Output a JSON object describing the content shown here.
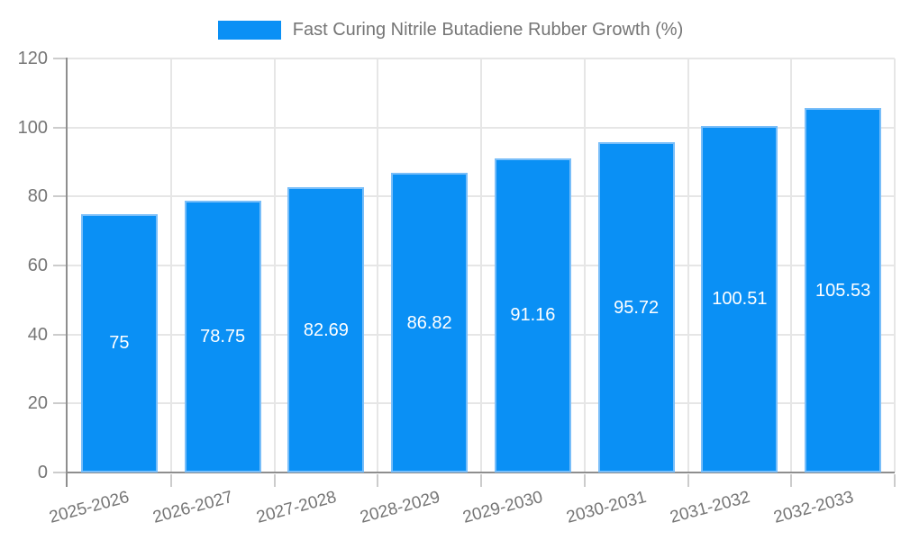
{
  "legend": {
    "label": "Fast Curing Nitrile Butadiene Rubber Growth (%)"
  },
  "colors": {
    "bar": "#0a90f5",
    "bar_border": "#79bef9",
    "grid": "#e6e6e6",
    "axis": "#8e8e8e",
    "tick": "#cccccc",
    "text": "#757575",
    "value_text": "#ffffff"
  },
  "chart_data": {
    "type": "bar",
    "title": "Fast Curing Nitrile Butadiene Rubber Growth (%)",
    "series_name": "Fast Curing Nitrile Butadiene Rubber Growth (%)",
    "categories": [
      "2025-2026",
      "2026-2027",
      "2027-2028",
      "2028-2029",
      "2029-2030",
      "2030-2031",
      "2031-2032",
      "2032-2033"
    ],
    "values": [
      75,
      78.75,
      82.69,
      86.82,
      91.16,
      95.72,
      100.51,
      105.53
    ],
    "value_labels": [
      "75",
      "78.75",
      "82.69",
      "86.82",
      "91.16",
      "95.72",
      "100.51",
      "105.53"
    ],
    "xlabel": "",
    "ylabel": "",
    "ylim": [
      0,
      120
    ],
    "yticks": [
      0,
      20,
      40,
      60,
      80,
      100,
      120
    ],
    "grid": true,
    "legend_position": "top",
    "value_label_position": "inside-center",
    "x_label_rotation_deg": -15
  }
}
